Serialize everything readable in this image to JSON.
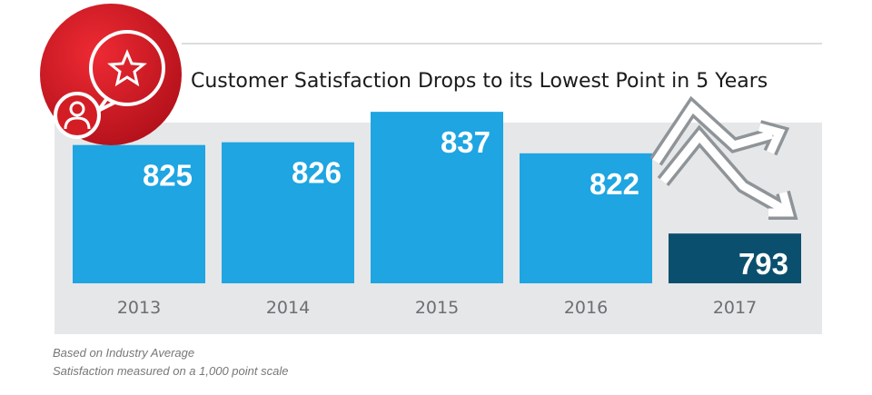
{
  "chart_data": {
    "type": "bar",
    "title": "Customer Satisfaction Drops to its Lowest Point in 5 Years",
    "categories": [
      "2013",
      "2014",
      "2015",
      "2016",
      "2017"
    ],
    "values": [
      825,
      826,
      837,
      822,
      793
    ],
    "colors": [
      "#1ea5e2",
      "#1ea5e2",
      "#1ea5e2",
      "#1ea5e2",
      "#0b4f6e"
    ],
    "ylim": [
      775,
      840
    ],
    "notes": [
      "Based on Industry Average",
      "Satisfaction measured on a 1,000 point scale"
    ]
  }
}
